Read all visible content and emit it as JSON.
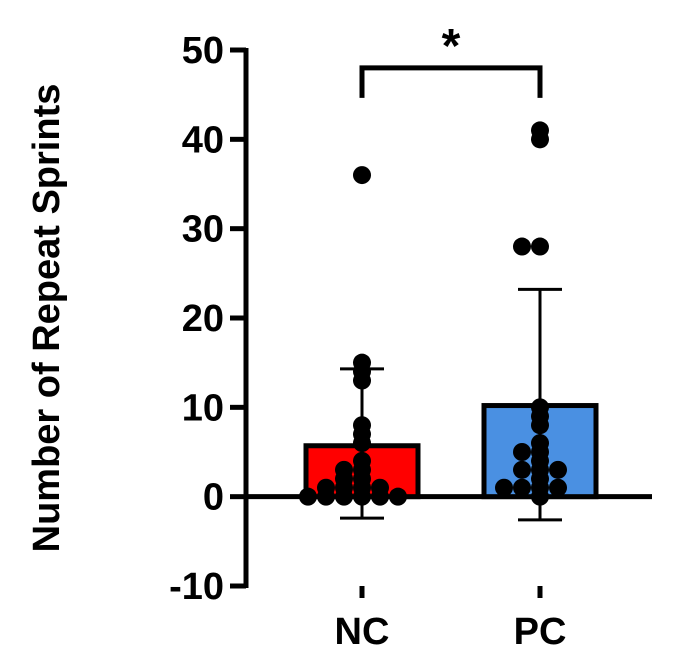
{
  "chart_data": {
    "type": "bar",
    "title": "",
    "xlabel": "",
    "ylabel": "Number of Repeat Sprints",
    "ylim": [
      -10,
      50
    ],
    "yticks": [
      "50",
      "40",
      "30",
      "20",
      "10",
      "0",
      "-10"
    ],
    "categories": [
      "NC",
      "PC"
    ],
    "groups": [
      {
        "name": "NC",
        "color": "#ff0000",
        "mean": 5.7,
        "error_upper": 14.3,
        "error_lower": -2.4,
        "points": [
          36,
          15,
          14,
          13,
          8,
          7,
          6,
          4,
          3,
          3,
          2,
          2,
          1,
          1,
          1,
          1,
          0,
          0,
          0,
          0,
          0,
          0
        ]
      },
      {
        "name": "PC",
        "color": "#4a90e2",
        "mean": 10.2,
        "error_upper": 23.2,
        "error_lower": -2.6,
        "points": [
          41,
          40,
          28,
          28,
          10,
          9,
          8,
          6,
          5,
          5,
          4,
          3,
          3,
          3,
          2,
          1,
          1,
          1,
          1,
          0
        ]
      }
    ],
    "significance": {
      "label": "*",
      "between": [
        "NC",
        "PC"
      ],
      "bracket_y": 48
    }
  }
}
